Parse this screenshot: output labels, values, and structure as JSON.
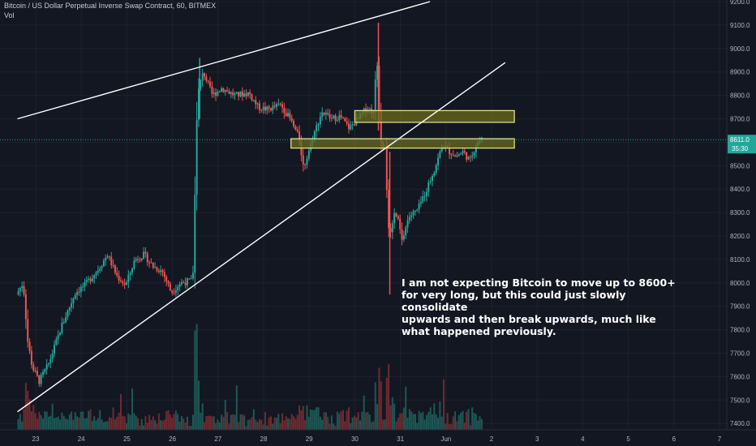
{
  "header": {
    "title": "Bitcoin / US Dollar Perpetual Inverse Swap Contract, 60, BITMEX",
    "volume_label": "Vol"
  },
  "annotation": {
    "text": "I am not expecting Bitcoin to move up to 8600+\nfor very long, but this could just slowly consolidate\nupwards and then break upwards, much like\nwhat happened previously."
  },
  "colors": {
    "background": "#131722",
    "up": "#26a69a",
    "down": "#ef5350",
    "zone_fill": "#6b6b1e",
    "zone_border": "#e0e080",
    "trendline": "#ffffff",
    "price_tag": "#26a69a"
  },
  "chart_data": {
    "type": "candlestick",
    "x_axis": {
      "tick_labels": [
        "23",
        "24",
        "25",
        "26",
        "27",
        "28",
        "29",
        "30",
        "31",
        "Jun",
        "2",
        "3",
        "4",
        "5",
        "6",
        "7"
      ],
      "tick_days": [
        23,
        24,
        25,
        26,
        27,
        28,
        29,
        30,
        31,
        32,
        33,
        34,
        35,
        36,
        37,
        38
      ]
    },
    "y_axis": {
      "range": [
        7350,
        9200
      ],
      "tick_labels": [
        "9200.0",
        "9100.0",
        "9000.0",
        "8900.0",
        "8800.0",
        "8700.0",
        "8600.0",
        "8500.0",
        "8400.0",
        "8300.0",
        "8200.0",
        "8100.0",
        "8000.0",
        "7900.0",
        "7800.0",
        "7700.0",
        "7600.0",
        "7500.0",
        "7400.0"
      ],
      "tick_values": [
        9200,
        9100,
        9000,
        8900,
        8800,
        8700,
        8600,
        8500,
        8400,
        8300,
        8200,
        8100,
        8000,
        7900,
        7800,
        7700,
        7600,
        7500,
        7400
      ]
    },
    "last_price": {
      "value": 8611.0,
      "label": "8611.0",
      "countdown": "35:30"
    },
    "price_path": [
      [
        22.6,
        7950
      ],
      [
        22.75,
        8000
      ],
      [
        22.85,
        7750
      ],
      [
        22.95,
        7640
      ],
      [
        23.1,
        7580
      ],
      [
        23.3,
        7650
      ],
      [
        23.6,
        7820
      ],
      [
        23.9,
        7960
      ],
      [
        24.1,
        7990
      ],
      [
        24.4,
        8060
      ],
      [
        24.6,
        8120
      ],
      [
        24.8,
        8030
      ],
      [
        25.0,
        7990
      ],
      [
        25.2,
        8100
      ],
      [
        25.4,
        8120
      ],
      [
        25.6,
        8070
      ],
      [
        25.8,
        8050
      ],
      [
        26.0,
        7960
      ],
      [
        26.2,
        8000
      ],
      [
        26.47,
        8010
      ],
      [
        26.52,
        8400
      ],
      [
        26.57,
        8800
      ],
      [
        26.7,
        8900
      ],
      [
        26.9,
        8800
      ],
      [
        27.1,
        8830
      ],
      [
        27.4,
        8800
      ],
      [
        27.7,
        8810
      ],
      [
        27.9,
        8750
      ],
      [
        28.1,
        8740
      ],
      [
        28.4,
        8760
      ],
      [
        28.6,
        8700
      ],
      [
        28.8,
        8620
      ],
      [
        28.9,
        8490
      ],
      [
        29.1,
        8620
      ],
      [
        29.3,
        8730
      ],
      [
        29.5,
        8700
      ],
      [
        29.7,
        8710
      ],
      [
        29.9,
        8660
      ],
      [
        30.1,
        8700
      ],
      [
        30.3,
        8750
      ],
      [
        30.45,
        8720
      ],
      [
        30.5,
        9000
      ],
      [
        30.55,
        8780
      ],
      [
        30.6,
        8600
      ],
      [
        30.7,
        8560
      ],
      [
        30.75,
        8250
      ],
      [
        30.8,
        8200
      ],
      [
        30.9,
        8300
      ],
      [
        31.0,
        8250
      ],
      [
        31.05,
        8170
      ],
      [
        31.2,
        8280
      ],
      [
        31.4,
        8310
      ],
      [
        31.6,
        8400
      ],
      [
        31.8,
        8500
      ],
      [
        31.95,
        8590
      ],
      [
        32.1,
        8560
      ],
      [
        32.25,
        8540
      ],
      [
        32.4,
        8560
      ],
      [
        32.55,
        8520
      ],
      [
        32.7,
        8600
      ],
      [
        32.8,
        8611
      ]
    ],
    "zones": [
      {
        "from": 30.0,
        "to": 33.5,
        "low": 8685,
        "high": 8735
      },
      {
        "from": 28.6,
        "to": 33.5,
        "low": 8575,
        "high": 8615
      }
    ],
    "trendlines": [
      {
        "x1": 22.6,
        "y1": 8700,
        "x2": 31.65,
        "y2": 9200
      },
      {
        "x1": 22.6,
        "y1": 7450,
        "x2": 33.3,
        "y2": 8940
      }
    ]
  }
}
